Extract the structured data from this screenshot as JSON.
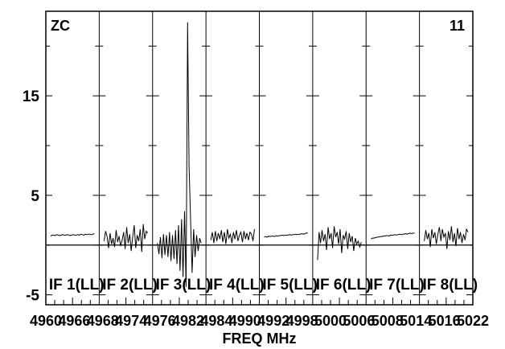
{
  "chart_data": {
    "type": "line",
    "corner_left": "ZC",
    "corner_right": "11",
    "xlabel": "FREQ MHz",
    "ylabel": "",
    "ylim": [
      -6,
      23.5
    ],
    "y_ticks": [
      -5,
      5,
      15
    ],
    "y_tick_labels": [
      "-5",
      "5",
      "15"
    ],
    "grid": "vertical panel separators only",
    "x_tick_labels": [
      "4960",
      "4966",
      "4968",
      "4974",
      "4976",
      "4982",
      "4984",
      "4990",
      "4992",
      "4998",
      "5000",
      "5006",
      "5008",
      "5014",
      "5016",
      "5022"
    ],
    "series": [
      {
        "name": "IF 1(LL)",
        "values": [
          0.9,
          1.0,
          1.0,
          0.95,
          1.05,
          1.0,
          0.95,
          1.0,
          1.05,
          1.0,
          1.0,
          1.05,
          1.0,
          0.95,
          1.0,
          1.05,
          1.0,
          1.0,
          1.05,
          1.0,
          1.1,
          1.05,
          1.0,
          1.1,
          1.05,
          1.1,
          1.1,
          1.05,
          1.1,
          1.15
        ]
      },
      {
        "name": "IF 2(LL)",
        "values": [
          0.4,
          1.4,
          0.9,
          -0.3,
          1.2,
          0.1,
          0.7,
          -0.2,
          1.5,
          0.3,
          0.9,
          -0.1,
          0.5,
          1.3,
          -0.4,
          1.8,
          0.2,
          1.1,
          -0.6,
          0.8,
          2.0,
          -0.3,
          1.0,
          0.4,
          1.6,
          -0.7,
          2.1,
          0.6,
          1.4,
          1.2
        ]
      },
      {
        "name": "IF 3(LL)",
        "values": [
          0.2,
          -0.9,
          0.8,
          -1.3,
          1.1,
          -1.0,
          1.0,
          -1.2,
          1.3,
          -1.6,
          1.0,
          -1.4,
          1.5,
          -1.9,
          2.0,
          -2.6,
          2.6,
          -3.2,
          3.4,
          -4.2,
          22.4,
          8.0,
          2.6,
          -2.8,
          1.6,
          -1.2,
          1.0,
          -0.6,
          0.7,
          0.2
        ]
      },
      {
        "name": "IF 4(LL)",
        "values": [
          0.5,
          1.3,
          0.2,
          1.4,
          0.4,
          1.2,
          0.6,
          1.5,
          0.3,
          1.3,
          0.1,
          1.6,
          0.7,
          1.1,
          0.2,
          1.3,
          0.6,
          1.5,
          0.4,
          1.0,
          1.3,
          0.3,
          1.4,
          0.6,
          1.2,
          0.5,
          1.3,
          1.1,
          0.4,
          1.6
        ]
      },
      {
        "name": "IF 5(LL)",
        "values": [
          0.8,
          0.85,
          0.8,
          0.9,
          0.85,
          0.9,
          0.9,
          0.85,
          0.95,
          0.9,
          0.95,
          0.95,
          1.0,
          0.95,
          1.0,
          1.0,
          1.0,
          1.05,
          1.0,
          1.05,
          1.05,
          1.1,
          1.05,
          1.1,
          1.1,
          1.15,
          1.1,
          1.15,
          1.2,
          1.2
        ]
      },
      {
        "name": "IF 6(LL)",
        "values": [
          -1.5,
          1.3,
          0.2,
          1.5,
          0.4,
          1.1,
          -0.5,
          1.8,
          0.6,
          1.2,
          -0.3,
          1.9,
          0.8,
          1.3,
          0.1,
          1.6,
          -0.8,
          1.0,
          0.6,
          1.4,
          -0.4,
          1.2,
          0.3,
          0.9,
          -0.6,
          0.7,
          0.1,
          0.4,
          -0.2,
          0.3
        ]
      },
      {
        "name": "IF 7(LL)",
        "values": [
          0.6,
          0.7,
          0.7,
          0.75,
          0.8,
          0.8,
          0.85,
          0.85,
          0.9,
          0.9,
          0.95,
          0.95,
          0.9,
          1.0,
          1.0,
          1.0,
          1.05,
          1.0,
          1.05,
          1.1,
          1.05,
          1.1,
          1.1,
          1.15,
          1.1,
          1.15,
          1.2,
          1.15,
          1.2,
          1.2
        ]
      },
      {
        "name": "IF 8(LL)",
        "values": [
          0.4,
          1.5,
          0.6,
          1.2,
          -0.2,
          1.6,
          0.7,
          1.3,
          0.1,
          1.1,
          1.8,
          0.4,
          1.6,
          0.8,
          1.2,
          -0.4,
          1.4,
          0.5,
          1.9,
          0.3,
          1.2,
          -0.1,
          1.7,
          0.6,
          1.3,
          0.2,
          1.1,
          0.5,
          1.6,
          1.3
        ]
      }
    ]
  }
}
